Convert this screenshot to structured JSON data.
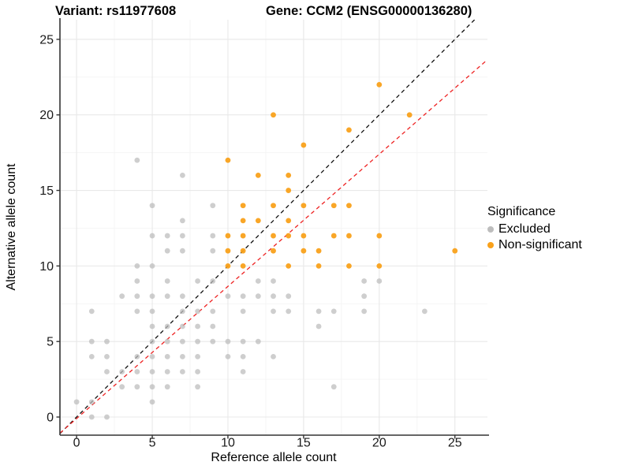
{
  "header": {
    "title_left": "Variant: rs11977608",
    "title_right": "Gene: CCM2 (ENSG00000136280)"
  },
  "chart_data": {
    "type": "scatter",
    "xlabel": "Reference allele count",
    "ylabel": "Alternative allele count",
    "xlim": [
      -1.1,
      27.15
    ],
    "ylim": [
      -1.2,
      26.3
    ],
    "x_ticks": [
      0,
      5,
      10,
      15,
      20,
      25
    ],
    "y_ticks": [
      0,
      5,
      10,
      15,
      20,
      25
    ],
    "grid": true,
    "colors": {
      "excluded": "#BDBDBD",
      "non_significant": "#F9A11B",
      "identity_line": "#111111",
      "fit_line": "#EE2222",
      "axis": "#333333",
      "grid_major": "#E8E8E8",
      "grid_minor": "#F4F4F4",
      "tick_text": "#1A1A1A"
    },
    "legend": {
      "title": "Significance",
      "position": "right",
      "entries": [
        {
          "label": "Excluded",
          "color": "#BDBDBD"
        },
        {
          "label": "Non-significant",
          "color": "#F9A11B"
        }
      ]
    },
    "lines": [
      {
        "name": "identity-line",
        "slope": 1,
        "intercept": 0,
        "color": "#111111",
        "dashed": true
      },
      {
        "name": "fit-line",
        "slope": 0.875,
        "intercept": -0.1,
        "color": "#EE2222",
        "dashed": true
      }
    ],
    "series": [
      {
        "name": "Excluded",
        "color": "#BDBDBD",
        "opacity": 0.75,
        "points": [
          [
            1,
            0
          ],
          [
            2,
            0
          ],
          [
            0,
            1
          ],
          [
            1,
            1
          ],
          [
            5,
            1
          ],
          [
            3,
            2
          ],
          [
            4,
            2
          ],
          [
            5,
            2
          ],
          [
            6,
            2
          ],
          [
            8,
            2
          ],
          [
            17,
            2
          ],
          [
            2,
            3
          ],
          [
            3,
            3
          ],
          [
            4,
            3
          ],
          [
            5,
            3
          ],
          [
            6,
            3
          ],
          [
            7,
            3
          ],
          [
            8,
            3
          ],
          [
            11,
            3
          ],
          [
            1,
            4
          ],
          [
            2,
            4
          ],
          [
            4,
            4
          ],
          [
            5,
            4
          ],
          [
            6,
            4
          ],
          [
            7,
            4
          ],
          [
            8,
            4
          ],
          [
            10,
            4
          ],
          [
            11,
            4
          ],
          [
            13,
            4
          ],
          [
            1,
            5
          ],
          [
            2,
            5
          ],
          [
            5,
            5
          ],
          [
            6,
            5
          ],
          [
            7,
            5
          ],
          [
            8,
            5
          ],
          [
            9,
            5
          ],
          [
            10,
            5
          ],
          [
            11,
            5
          ],
          [
            12,
            5
          ],
          [
            5,
            6
          ],
          [
            6,
            6
          ],
          [
            7,
            6
          ],
          [
            8,
            6
          ],
          [
            9,
            6
          ],
          [
            16,
            6
          ],
          [
            1,
            7
          ],
          [
            4,
            7
          ],
          [
            5,
            7
          ],
          [
            7,
            7
          ],
          [
            8,
            7
          ],
          [
            9,
            7
          ],
          [
            11,
            7
          ],
          [
            13,
            7
          ],
          [
            14,
            7
          ],
          [
            16,
            7
          ],
          [
            17,
            7
          ],
          [
            19,
            7
          ],
          [
            23,
            7
          ],
          [
            3,
            8
          ],
          [
            4,
            8
          ],
          [
            5,
            8
          ],
          [
            6,
            8
          ],
          [
            7,
            8
          ],
          [
            10,
            8
          ],
          [
            11,
            8
          ],
          [
            12,
            8
          ],
          [
            13,
            8
          ],
          [
            14,
            8
          ],
          [
            19,
            8
          ],
          [
            4,
            9
          ],
          [
            6,
            9
          ],
          [
            8,
            9
          ],
          [
            9,
            9
          ],
          [
            12,
            9
          ],
          [
            13,
            9
          ],
          [
            19,
            9
          ],
          [
            20,
            9
          ],
          [
            4,
            10
          ],
          [
            5,
            10
          ],
          [
            6,
            11
          ],
          [
            7,
            11
          ],
          [
            9,
            11
          ],
          [
            5,
            12
          ],
          [
            6,
            12
          ],
          [
            7,
            12
          ],
          [
            9,
            12
          ],
          [
            7,
            13
          ],
          [
            5,
            14
          ],
          [
            9,
            14
          ],
          [
            7,
            16
          ],
          [
            4,
            17
          ]
        ]
      },
      {
        "name": "Non-significant",
        "color": "#F9A11B",
        "opacity": 0.95,
        "points": [
          [
            10,
            10
          ],
          [
            11,
            10
          ],
          [
            14,
            10
          ],
          [
            16,
            10
          ],
          [
            18,
            10
          ],
          [
            20,
            10
          ],
          [
            10,
            11
          ],
          [
            11,
            11
          ],
          [
            13,
            11
          ],
          [
            15,
            11
          ],
          [
            16,
            11
          ],
          [
            25,
            11
          ],
          [
            10,
            12
          ],
          [
            11,
            12
          ],
          [
            13,
            12
          ],
          [
            14,
            12
          ],
          [
            15,
            12
          ],
          [
            17,
            12
          ],
          [
            18,
            12
          ],
          [
            20,
            12
          ],
          [
            11,
            13
          ],
          [
            12,
            13
          ],
          [
            14,
            13
          ],
          [
            11,
            14
          ],
          [
            13,
            14
          ],
          [
            15,
            14
          ],
          [
            17,
            14
          ],
          [
            18,
            14
          ],
          [
            14,
            15
          ],
          [
            12,
            16
          ],
          [
            14,
            16
          ],
          [
            10,
            17
          ],
          [
            15,
            18
          ],
          [
            18,
            19
          ],
          [
            13,
            20
          ],
          [
            22,
            20
          ],
          [
            20,
            22
          ]
        ]
      }
    ]
  }
}
